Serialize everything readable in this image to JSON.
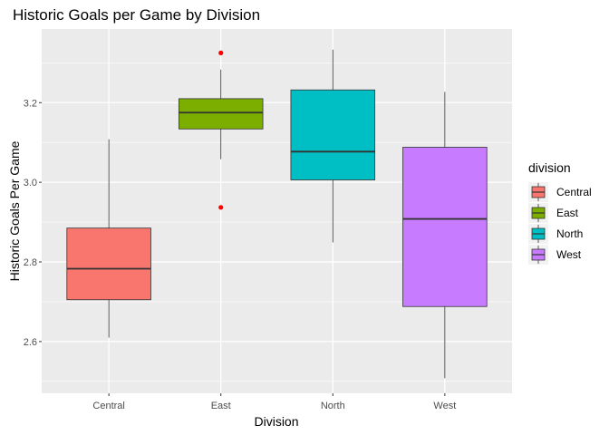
{
  "chart_data": {
    "type": "boxplot",
    "title": "Historic Goals per Game by Division",
    "xlabel": "Division",
    "ylabel": "Historic Goals Per Game",
    "ylim": [
      2.47,
      3.385
    ],
    "yticks": [
      2.6,
      2.8,
      3.0,
      3.2
    ],
    "ytick_labels": [
      "2.6",
      "2.8",
      "3.0",
      "3.2"
    ],
    "grid": true,
    "legend": {
      "title": "division",
      "position": "right"
    },
    "categories": [
      "Central",
      "East",
      "North",
      "West"
    ],
    "boxes": [
      {
        "name": "Central",
        "color": "#F8766D",
        "whisker_low": 2.61,
        "q1": 2.705,
        "median": 2.783,
        "q3": 2.885,
        "whisker_high": 3.108,
        "outliers": []
      },
      {
        "name": "East",
        "color": "#7CAE00",
        "whisker_low": 3.058,
        "q1": 3.134,
        "median": 3.175,
        "q3": 3.21,
        "whisker_high": 3.283,
        "outliers": [
          3.325,
          2.937
        ]
      },
      {
        "name": "North",
        "color": "#00BFC4",
        "whisker_low": 2.849,
        "q1": 3.006,
        "median": 3.077,
        "q3": 3.232,
        "whisker_high": 3.333,
        "outliers": []
      },
      {
        "name": "West",
        "color": "#C77CFF",
        "whisker_low": 2.508,
        "q1": 2.688,
        "median": 2.908,
        "q3": 3.088,
        "whisker_high": 3.227,
        "outliers": []
      }
    ],
    "outlier_color": "#ff0000"
  }
}
